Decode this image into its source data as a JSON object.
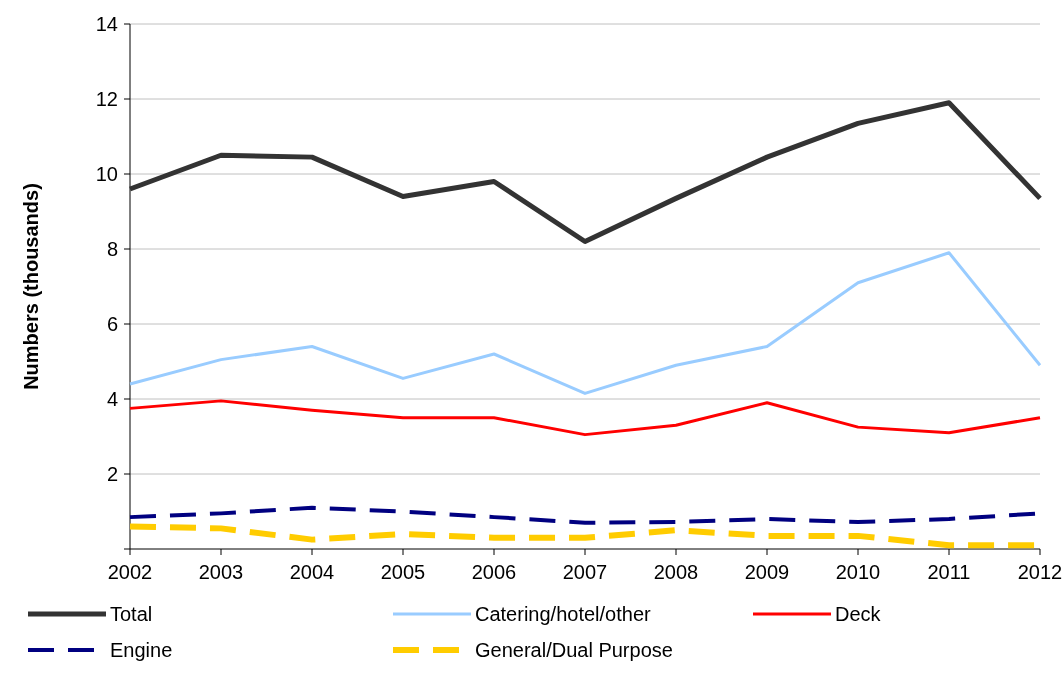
{
  "chart_data": {
    "type": "line",
    "ylabel": "Numbers (thousands)",
    "categories": [
      "2002",
      "2003",
      "2004",
      "2005",
      "2006",
      "2007",
      "2008",
      "2009",
      "2010",
      "2011",
      "2012"
    ],
    "series": [
      {
        "name": "Total",
        "color": "#333333",
        "values": [
          9.6,
          10.5,
          10.45,
          9.4,
          9.8,
          8.2,
          9.35,
          10.45,
          11.35,
          11.9,
          9.35
        ]
      },
      {
        "name": "Catering/hotel/other",
        "color": "#99ccff",
        "values": [
          4.4,
          5.05,
          5.4,
          4.55,
          5.2,
          4.15,
          4.9,
          5.4,
          7.1,
          7.9,
          4.9
        ]
      },
      {
        "name": "Deck",
        "color": "#ff0000",
        "values": [
          3.75,
          3.95,
          3.7,
          3.5,
          3.5,
          3.05,
          3.3,
          3.9,
          3.25,
          3.1,
          3.5
        ]
      },
      {
        "name": "Engine",
        "color": "#000080",
        "line_style": "dashed",
        "values": [
          0.85,
          0.95,
          1.1,
          1.0,
          0.85,
          0.7,
          0.72,
          0.8,
          0.72,
          0.8,
          0.95
        ]
      },
      {
        "name": "General/Dual Purpose",
        "color": "#ffcc00",
        "line_style": "dashed",
        "values": [
          0.6,
          0.55,
          0.25,
          0.4,
          0.3,
          0.3,
          0.5,
          0.35,
          0.35,
          0.1,
          0.1
        ]
      }
    ],
    "ylim": [
      0,
      14
    ],
    "yticks": [
      {
        "value": 0,
        "label": null
      },
      2,
      4,
      6,
      8,
      10,
      12,
      14
    ],
    "grid": "y",
    "legend": "bottom"
  }
}
